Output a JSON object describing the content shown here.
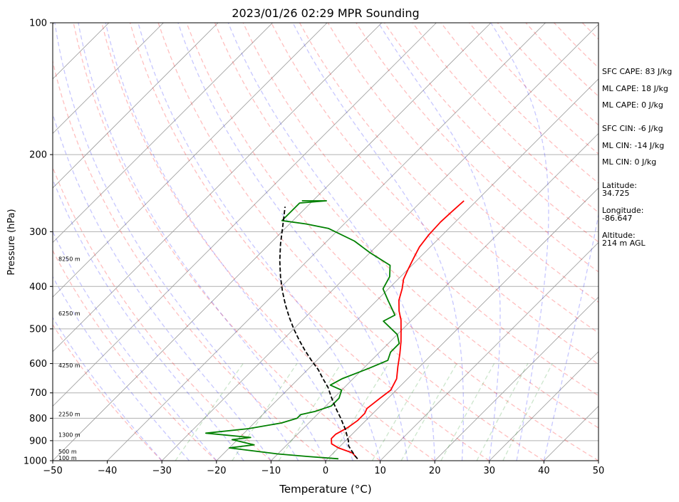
{
  "chart_data": {
    "type": "line",
    "title": "2023/01/26 02:29 MPR Sounding",
    "xlabel": "Temperature (°C)",
    "ylabel": "Pressure (hPa)",
    "xlim": [
      -50,
      50
    ],
    "ylim": [
      1000,
      100
    ],
    "y_scale": "log",
    "grid": true,
    "x_ticks": [
      "−50",
      "−40",
      "−30",
      "−20",
      "−10",
      "0",
      "10",
      "20",
      "30",
      "40",
      "50"
    ],
    "y_ticks": [
      100,
      200,
      300,
      400,
      500,
      600,
      700,
      800,
      900,
      1000
    ],
    "height_labels": [
      {
        "text": "100 m",
        "p": 985
      },
      {
        "text": "500 m",
        "p": 953
      },
      {
        "text": "1300 m",
        "p": 873
      },
      {
        "text": "2250 m",
        "p": 782
      },
      {
        "text": "4250 m",
        "p": 605
      },
      {
        "text": "6250 m",
        "p": 461
      },
      {
        "text": "8250 m",
        "p": 346
      }
    ],
    "series": [
      {
        "kind": "temperature",
        "color": "#ff0000",
        "points": [
          [
            5.5,
            990
          ],
          [
            4.5,
            975
          ],
          [
            3.5,
            960
          ],
          [
            0,
            935
          ],
          [
            -2,
            915
          ],
          [
            -3,
            890
          ],
          [
            -3,
            870
          ],
          [
            -2,
            840
          ],
          [
            -1.5,
            810
          ],
          [
            -1.5,
            780
          ],
          [
            -2,
            760
          ],
          [
            -1.5,
            720
          ],
          [
            -1,
            690
          ],
          [
            -2,
            650
          ],
          [
            -4,
            610
          ],
          [
            -6,
            570
          ],
          [
            -8,
            535
          ],
          [
            -10,
            505
          ],
          [
            -12,
            477
          ],
          [
            -14,
            455
          ],
          [
            -16,
            430
          ],
          [
            -17.5,
            405
          ],
          [
            -19,
            385
          ],
          [
            -20,
            365
          ],
          [
            -21,
            345
          ],
          [
            -22,
            325
          ],
          [
            -22.5,
            305
          ],
          [
            -22.7,
            285
          ],
          [
            -22.5,
            268
          ],
          [
            -22.3,
            255
          ]
        ]
      },
      {
        "kind": "dewpoint",
        "color": "#008000",
        "points": [
          [
            2,
            990
          ],
          [
            -4,
            978
          ],
          [
            -10,
            965
          ],
          [
            -20,
            935
          ],
          [
            -16,
            920
          ],
          [
            -21,
            895
          ],
          [
            -18,
            885
          ],
          [
            -27,
            865
          ],
          [
            -20,
            845
          ],
          [
            -15,
            820
          ],
          [
            -13,
            800
          ],
          [
            -13,
            785
          ],
          [
            -11,
            772
          ],
          [
            -9,
            750
          ],
          [
            -9,
            720
          ],
          [
            -10,
            690
          ],
          [
            -13,
            672
          ],
          [
            -12,
            650
          ],
          [
            -9,
            615
          ],
          [
            -7,
            590
          ],
          [
            -8,
            565
          ],
          [
            -8,
            540
          ],
          [
            -10,
            515
          ],
          [
            -15,
            480
          ],
          [
            -14,
            465
          ],
          [
            -18,
            430
          ],
          [
            -21,
            405
          ],
          [
            -22,
            380
          ],
          [
            -24,
            358
          ],
          [
            -30,
            335
          ],
          [
            -35,
            315
          ],
          [
            -42,
            295
          ],
          [
            -47,
            288
          ],
          [
            -52,
            283
          ],
          [
            -52,
            258
          ],
          [
            -47.5,
            255
          ],
          [
            -52,
            255
          ]
        ]
      },
      {
        "kind": "parcel",
        "color": "#000000",
        "points": [
          [
            5.5,
            990
          ],
          [
            4.5,
            975
          ],
          [
            3,
            950
          ],
          [
            1.5,
            925
          ],
          [
            0.5,
            900
          ],
          [
            -0.5,
            880
          ],
          [
            -2,
            850
          ],
          [
            -3.5,
            825
          ],
          [
            -5,
            800
          ],
          [
            -7,
            770
          ],
          [
            -9,
            740
          ],
          [
            -11,
            710
          ],
          [
            -13,
            680
          ],
          [
            -15.5,
            650
          ],
          [
            -18,
            620
          ],
          [
            -21,
            590
          ],
          [
            -24,
            560
          ],
          [
            -27,
            530
          ],
          [
            -30,
            500
          ],
          [
            -33,
            470
          ],
          [
            -36,
            440
          ],
          [
            -39,
            410
          ],
          [
            -42,
            380
          ],
          [
            -45,
            350
          ],
          [
            -48,
            320
          ],
          [
            -51,
            290
          ],
          [
            -54,
            263
          ]
        ]
      }
    ]
  },
  "annotations": {
    "sfc_cape": "SFC CAPE: 83 J/kg",
    "ml_cape_1": "ML CAPE: 18 J/kg",
    "ml_cape_2": "ML CAPE: 0 J/kg",
    "sfc_cin": "SFC CIN: -6 J/kg",
    "ml_cin_1": "ML CIN: -14 J/kg",
    "ml_cin_2": "ML CIN: 0 J/kg",
    "latitude": "Latitude:\n34.725",
    "longitude": "Longitude:\n-86.647",
    "altitude": "Altitude:\n214 m AGL"
  },
  "colors": {
    "isotherm": "#9a9a9a",
    "dry_adiabat": "#ff0000",
    "moist_adiabat": "#0000ff",
    "mixing_ratio": "#008000",
    "pressure_grid": "#b0b0b0"
  }
}
